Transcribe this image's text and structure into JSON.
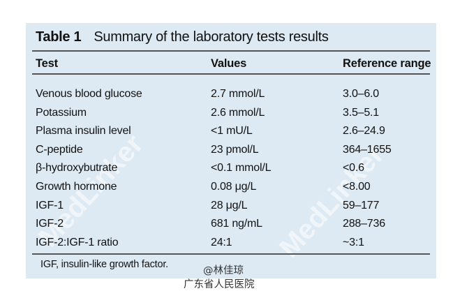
{
  "table": {
    "label": "Table 1",
    "title": "Summary of the laboratory tests results",
    "headers": [
      "Test",
      "Values",
      "Reference range"
    ],
    "rows": [
      [
        "Venous blood glucose",
        "2.7 mmol/L",
        "3.0–6.0"
      ],
      [
        "Potassium",
        "2.6 mmol/L",
        "3.5–5.1"
      ],
      [
        "Plasma insulin level",
        "<1 mU/L",
        "2.6–24.9"
      ],
      [
        "C-peptide",
        "23 pmol/L",
        "364–1655"
      ],
      [
        "β-hydroxybutrate",
        "<0.1 mmol/L",
        "<0.6"
      ],
      [
        "Growth hormone",
        "0.08 μg/L",
        "<8.00"
      ],
      [
        "IGF-1",
        "28 μg/L",
        "59–177"
      ],
      [
        "IGF-2",
        "681 ng/mL",
        "288–736"
      ],
      [
        "IGF-2:IGF-1 ratio",
        "24:1",
        "~3:1"
      ]
    ],
    "footnote": "IGF, insulin-like growth factor."
  },
  "watermarks": [
    "MedLinker",
    "MedLinker"
  ],
  "stamp": {
    "line1": "@林佳琼",
    "line2": "广东省人民医院"
  },
  "colors": {
    "panel_bg": "#dde9f3",
    "rule": "#555555"
  }
}
